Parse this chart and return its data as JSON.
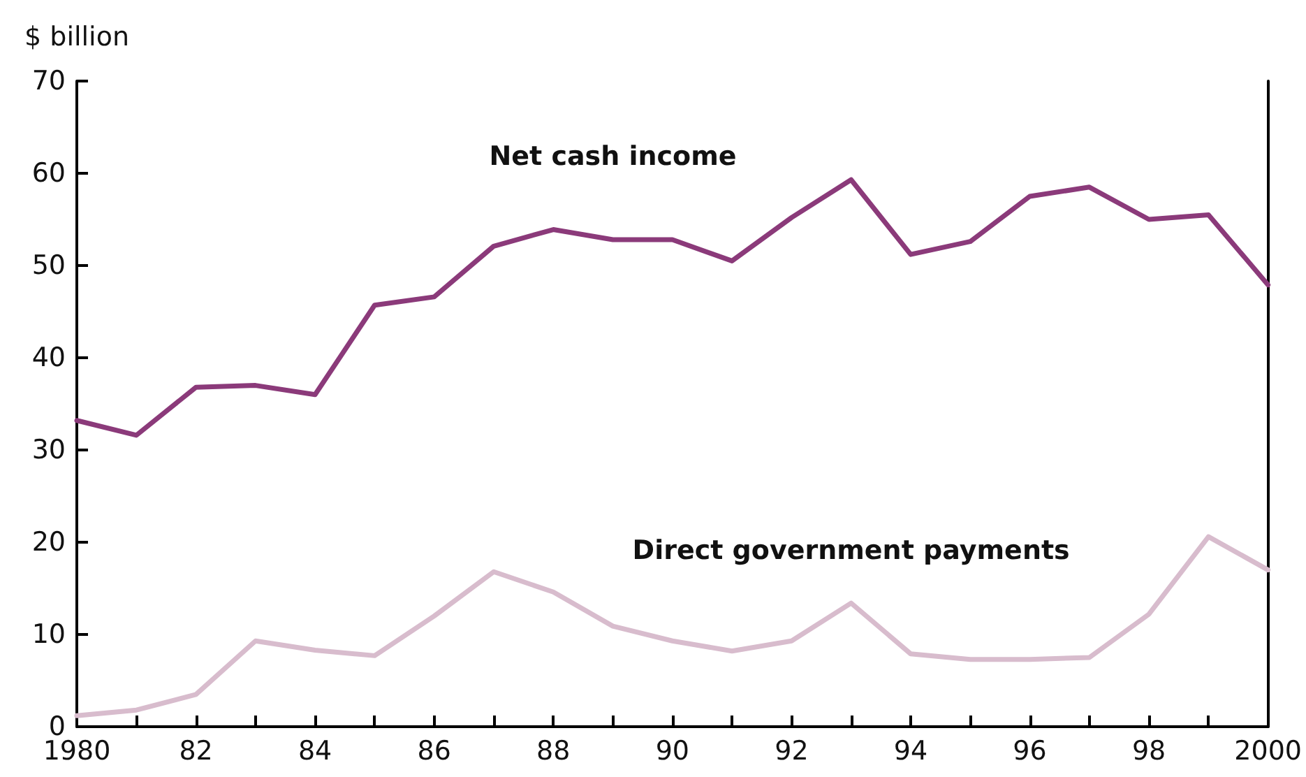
{
  "chart_data": {
    "type": "line",
    "ylabel": "$ billion",
    "x": [
      1980,
      1981,
      1982,
      1983,
      1984,
      1985,
      1986,
      1987,
      1988,
      1989,
      1990,
      1991,
      1992,
      1993,
      1994,
      1995,
      1996,
      1997,
      1998,
      1999,
      2000
    ],
    "series": [
      {
        "name": "Net cash income",
        "color": "#8b3a7a",
        "values": [
          33.2,
          31.6,
          36.8,
          37.0,
          36.0,
          45.7,
          46.6,
          52.1,
          53.9,
          52.8,
          52.8,
          50.5,
          55.2,
          59.3,
          51.2,
          52.6,
          57.5,
          58.5,
          55.0,
          55.5,
          47.9
        ]
      },
      {
        "name": "Direct government payments",
        "color": "#d8bccd",
        "values": [
          1.2,
          1.8,
          3.5,
          9.3,
          8.3,
          7.7,
          12.0,
          16.8,
          14.6,
          10.9,
          9.3,
          8.2,
          9.3,
          13.4,
          7.9,
          7.3,
          7.3,
          7.5,
          12.2,
          20.6,
          17.0
        ]
      }
    ],
    "xlim": [
      1980,
      2000
    ],
    "xticks": [
      {
        "value": 1980,
        "label": "1980"
      },
      {
        "value": 1981,
        "label": null
      },
      {
        "value": 1982,
        "label": "82"
      },
      {
        "value": 1983,
        "label": null
      },
      {
        "value": 1984,
        "label": "84"
      },
      {
        "value": 1985,
        "label": null
      },
      {
        "value": 1986,
        "label": "86"
      },
      {
        "value": 1987,
        "label": null
      },
      {
        "value": 1988,
        "label": "88"
      },
      {
        "value": 1989,
        "label": null
      },
      {
        "value": 1990,
        "label": "90"
      },
      {
        "value": 1991,
        "label": null
      },
      {
        "value": 1992,
        "label": "92"
      },
      {
        "value": 1993,
        "label": null
      },
      {
        "value": 1994,
        "label": "94"
      },
      {
        "value": 1995,
        "label": null
      },
      {
        "value": 1996,
        "label": "96"
      },
      {
        "value": 1997,
        "label": null
      },
      {
        "value": 1998,
        "label": "98"
      },
      {
        "value": 1999,
        "label": null
      },
      {
        "value": 2000,
        "label": "2000"
      }
    ],
    "ylim": [
      0,
      70
    ],
    "yticks": [
      0,
      10,
      20,
      30,
      40,
      50,
      60,
      70
    ],
    "grid": false,
    "legend": false,
    "marker": "none",
    "line_style": "solid"
  }
}
